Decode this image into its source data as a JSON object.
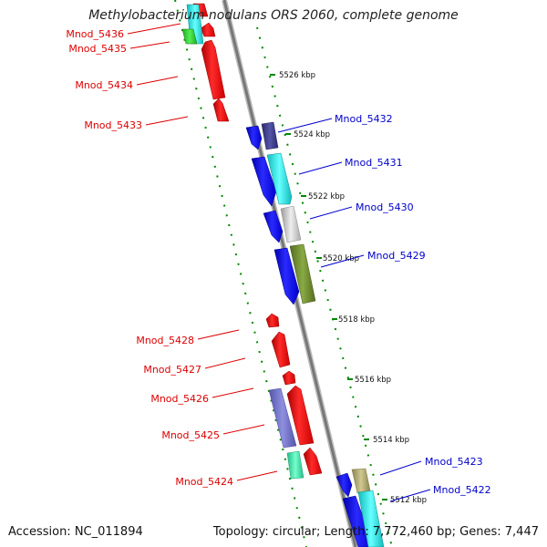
{
  "title": "Methylobacterium nodulans ORS 2060, complete genome",
  "accession_text": "Accession: NC_011894",
  "summary_text": "Topology: circular; Length: 7,772,460 bp; Genes: 7,447",
  "colors": {
    "left_label": "#dd0000",
    "right_label": "#0000cc",
    "ticks": "#008800",
    "backbone": "#888888"
  },
  "kbp_ticks": [
    "5526 kbp",
    "5524 kbp",
    "5522 kbp",
    "5520 kbp",
    "5518 kbp",
    "5516 kbp",
    "5514 kbp",
    "5512 kbp"
  ],
  "left_genes": [
    {
      "label": "Mnod_5436",
      "color": "#ee0000"
    },
    {
      "label": "Mnod_5435",
      "color": "#33cc33"
    },
    {
      "label": "Mnod_5434",
      "color": "#ee0000"
    },
    {
      "label": "Mnod_5433",
      "color": "#ee0000"
    },
    {
      "label": "Mnod_5428",
      "color": "#ee0000"
    },
    {
      "label": "Mnod_5427",
      "color": "#ee0000"
    },
    {
      "label": "Mnod_5426",
      "color": "#ee0000"
    },
    {
      "label": "Mnod_5425",
      "color": "#7070cc"
    },
    {
      "label": "Mnod_5424",
      "color": "#33dd99"
    }
  ],
  "right_genes": [
    {
      "label": "Mnod_5432",
      "color": "#3a3a88"
    },
    {
      "label": "Mnod_5431",
      "color": "#22dddd"
    },
    {
      "label": "Mnod_5430",
      "color": "#bbbbbb"
    },
    {
      "label": "Mnod_5429",
      "color": "#6b8e23"
    },
    {
      "label": "Mnod_5423",
      "color": "#b0a86a"
    },
    {
      "label": "Mnod_5422",
      "color": "#22dddd"
    }
  ]
}
